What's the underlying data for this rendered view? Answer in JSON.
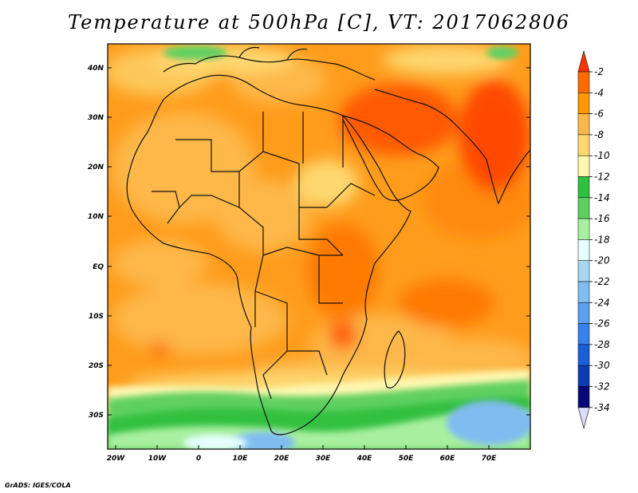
{
  "title": "Temperature at 500hPa [C], VT: 2017062806",
  "footer": "GrADS: IGES/COLA",
  "lat_ticks": [
    "40N",
    "30N",
    "20N",
    "10N",
    "EQ",
    "10S",
    "20S",
    "30S"
  ],
  "lon_ticks": [
    "20W",
    "10W",
    "0",
    "10E",
    "20E",
    "30E",
    "40E",
    "50E",
    "60E",
    "70E"
  ],
  "colorbar": {
    "labels": [
      "-2",
      "-4",
      "-6",
      "-8",
      "-10",
      "-12",
      "-14",
      "-16",
      "-18",
      "-20",
      "-22",
      "-24",
      "-26",
      "-28",
      "-30",
      "-32",
      "-34"
    ],
    "colors": [
      "#ff4000",
      "#ff6a00",
      "#ff9900",
      "#fdb84a",
      "#fdd870",
      "#fff8b0",
      "#30c040",
      "#60d060",
      "#a8f0a0",
      "#e6ffff",
      "#a8d8f0",
      "#80bcf0",
      "#5aa0ee",
      "#3880ea",
      "#1a5ed8",
      "#0c3cb0",
      "#080878"
    ],
    "over_color": "#ff3300",
    "under_color": "#dcdcff"
  }
}
